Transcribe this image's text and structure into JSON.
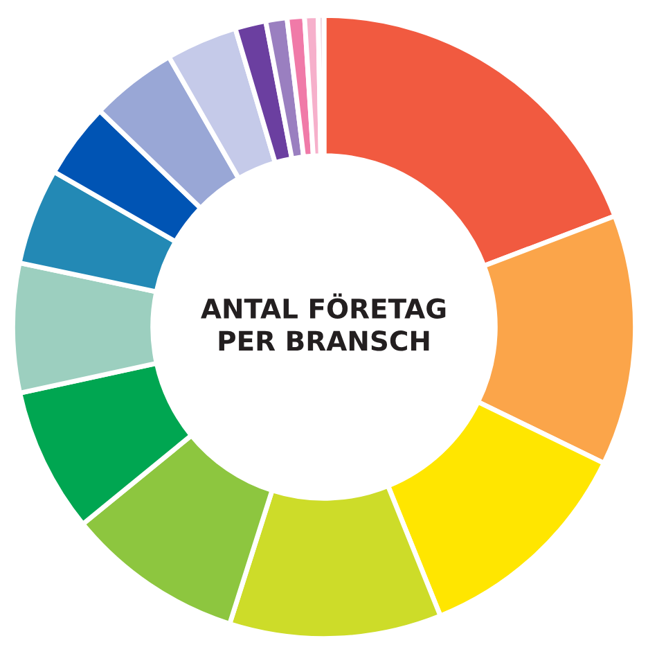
{
  "chart_data": {
    "type": "donut",
    "title": "ANTAL FÖRETAG\nPER BRANSCH",
    "categories": [
      null,
      null,
      null,
      null,
      null,
      null,
      null,
      null,
      null,
      null,
      null,
      null,
      null,
      null,
      null,
      null
    ],
    "values": [
      19.2,
      13,
      11.7,
      11,
      9.2,
      7.5,
      6.7,
      5,
      3.9,
      4.5,
      3.7,
      1.6,
      1.1,
      0.9,
      0.7,
      0.3
    ],
    "colors": [
      "#f15a40",
      "#fba54a",
      "#ffe600",
      "#cddc29",
      "#8dc63f",
      "#00a651",
      "#9ccfbf",
      "#2389b5",
      "#0054b4",
      "#99a7d6",
      "#c5cae9",
      "#6b3fa0",
      "#9a7fc0",
      "#f07aa8",
      "#f6b0cb",
      "#e9c6d6"
    ],
    "legend": false
  }
}
